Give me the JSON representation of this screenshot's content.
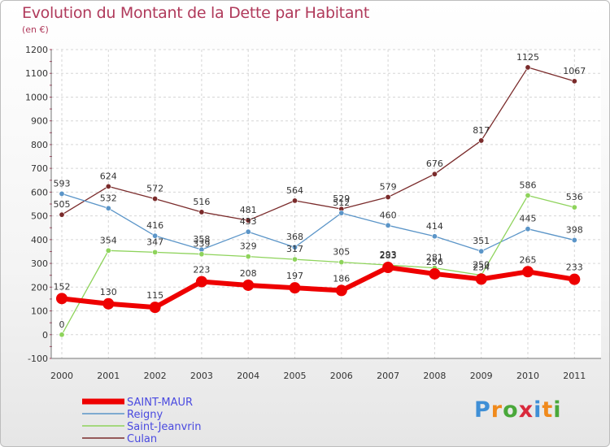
{
  "header": {
    "title": "Evolution du Montant de la Dette par Habitant",
    "unit": "(en €)"
  },
  "logo": {
    "text": "Proxiti"
  },
  "chart_data": {
    "type": "line",
    "title": "Evolution du Montant de la Dette par Habitant",
    "subtitle": "(en €)",
    "x": [
      "2000",
      "2001",
      "2002",
      "2003",
      "2004",
      "2005",
      "2006",
      "2007",
      "2008",
      "2009",
      "2010",
      "2011"
    ],
    "ylim": [
      -100,
      1200
    ],
    "yticks": [
      -100,
      0,
      100,
      200,
      300,
      400,
      500,
      600,
      700,
      800,
      900,
      1000,
      1100,
      1200
    ],
    "grid": true,
    "legend": "bottom-left",
    "series": [
      {
        "name": "SAINT-MAUR",
        "color": "#ee0000",
        "values": [
          152,
          130,
          115,
          223,
          208,
          197,
          186,
          283,
          256,
          234,
          265,
          233
        ]
      },
      {
        "name": "Reigny",
        "color": "#5b95c8",
        "values": [
          593,
          532,
          416,
          358,
          433,
          368,
          512,
          460,
          414,
          351,
          445,
          398
        ]
      },
      {
        "name": "Saint-Jeanvrin",
        "color": "#8ed35b",
        "values": [
          0,
          354,
          347,
          339,
          329,
          317,
          305,
          293,
          281,
          250,
          586,
          536
        ]
      },
      {
        "name": "Culan",
        "color": "#7a2b2b",
        "values": [
          505,
          624,
          572,
          516,
          481,
          564,
          529,
          579,
          676,
          817,
          1125,
          1067
        ]
      }
    ]
  }
}
